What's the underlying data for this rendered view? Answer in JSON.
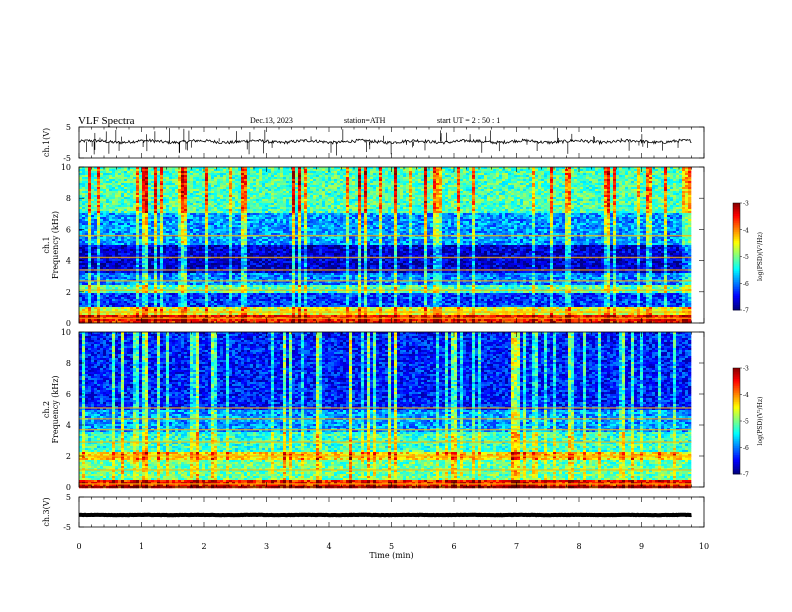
{
  "header": {
    "title": "VLF  Spectra",
    "date": "Dec.13, 2023",
    "station": "station=ATH",
    "start_ut": "start  UT  =   2  : 50 : 1"
  },
  "chart_data": [
    {
      "type": "line",
      "panel": "ch1_waveform",
      "ylabel": "ch.1(V)",
      "ylim": [
        -5,
        5
      ],
      "yticks": [
        "5",
        "-5"
      ],
      "baseline": 0.3,
      "noise": 0.5,
      "spikes_per_min": 7
    },
    {
      "type": "heatmap",
      "panel": "ch1_spectrogram",
      "ylabel_lines": [
        "ch.1",
        "Frequency  (kHz)"
      ],
      "ylim": [
        0,
        10
      ],
      "yticks": [
        "0",
        "2",
        "4",
        "6",
        "8",
        "10"
      ],
      "colorbar": {
        "label": "log(PSD)(V²/Hz)",
        "range": [
          -7,
          -3
        ],
        "ticks": [
          "-3",
          "-4",
          "-5",
          "-6",
          "-7"
        ],
        "colormap": "jet"
      },
      "bands_khz": [
        {
          "from": 0.0,
          "to": 0.5,
          "level": -3.6
        },
        {
          "from": 0.5,
          "to": 1.0,
          "level": -4.6
        },
        {
          "from": 1.0,
          "to": 1.9,
          "level": -6.3
        },
        {
          "from": 1.9,
          "to": 2.4,
          "level": -5.2
        },
        {
          "from": 2.4,
          "to": 3.2,
          "level": -6.0
        },
        {
          "from": 3.2,
          "to": 5.0,
          "level": -6.7
        },
        {
          "from": 5.0,
          "to": 7.0,
          "level": -5.9
        },
        {
          "from": 7.0,
          "to": 10.0,
          "level": -5.2
        }
      ],
      "tone_lines_khz": [
        0.3,
        0.7,
        2.1,
        2.7,
        3.4,
        4.2,
        5.6
      ],
      "sferics": "frequent broadband vertical bursts"
    },
    {
      "type": "heatmap",
      "panel": "ch2_spectrogram",
      "ylabel_lines": [
        "ch.2",
        "Frequency  (kHz)"
      ],
      "ylim": [
        0,
        10
      ],
      "yticks": [
        "0",
        "2",
        "4",
        "6",
        "8",
        "10"
      ],
      "colorbar": {
        "label": "log(PSD)(V²/Hz)",
        "range": [
          -7,
          -3
        ],
        "ticks": [
          "-3",
          "-4",
          "-5",
          "-6",
          "-7"
        ],
        "colormap": "jet"
      },
      "bands_khz": [
        {
          "from": 0.0,
          "to": 0.4,
          "level": -3.6
        },
        {
          "from": 0.4,
          "to": 1.7,
          "level": -5.1
        },
        {
          "from": 1.7,
          "to": 2.3,
          "level": -4.4
        },
        {
          "from": 2.3,
          "to": 3.5,
          "level": -5.3
        },
        {
          "from": 3.5,
          "to": 5.0,
          "level": -5.9
        },
        {
          "from": 5.0,
          "to": 10.0,
          "level": -6.4
        }
      ],
      "tone_lines_khz": [
        0.2,
        1.1,
        2.0,
        2.9,
        3.7,
        4.4,
        5.1
      ],
      "sferics": "frequent broadband vertical bursts"
    },
    {
      "type": "line",
      "panel": "ch3_waveform",
      "ylabel": "ch.3(V)",
      "ylim": [
        -5,
        5
      ],
      "yticks": [
        "5",
        "-5"
      ],
      "baseline": -1.0,
      "noise": 0.05,
      "spikes_per_min": 0
    }
  ],
  "x_axis": {
    "xlabel": "Time  (min)",
    "xlim": [
      0,
      10
    ],
    "data_xmax": 9.8,
    "ticks": [
      "0",
      "1",
      "2",
      "3",
      "4",
      "5",
      "6",
      "7",
      "8",
      "9",
      "10"
    ]
  }
}
